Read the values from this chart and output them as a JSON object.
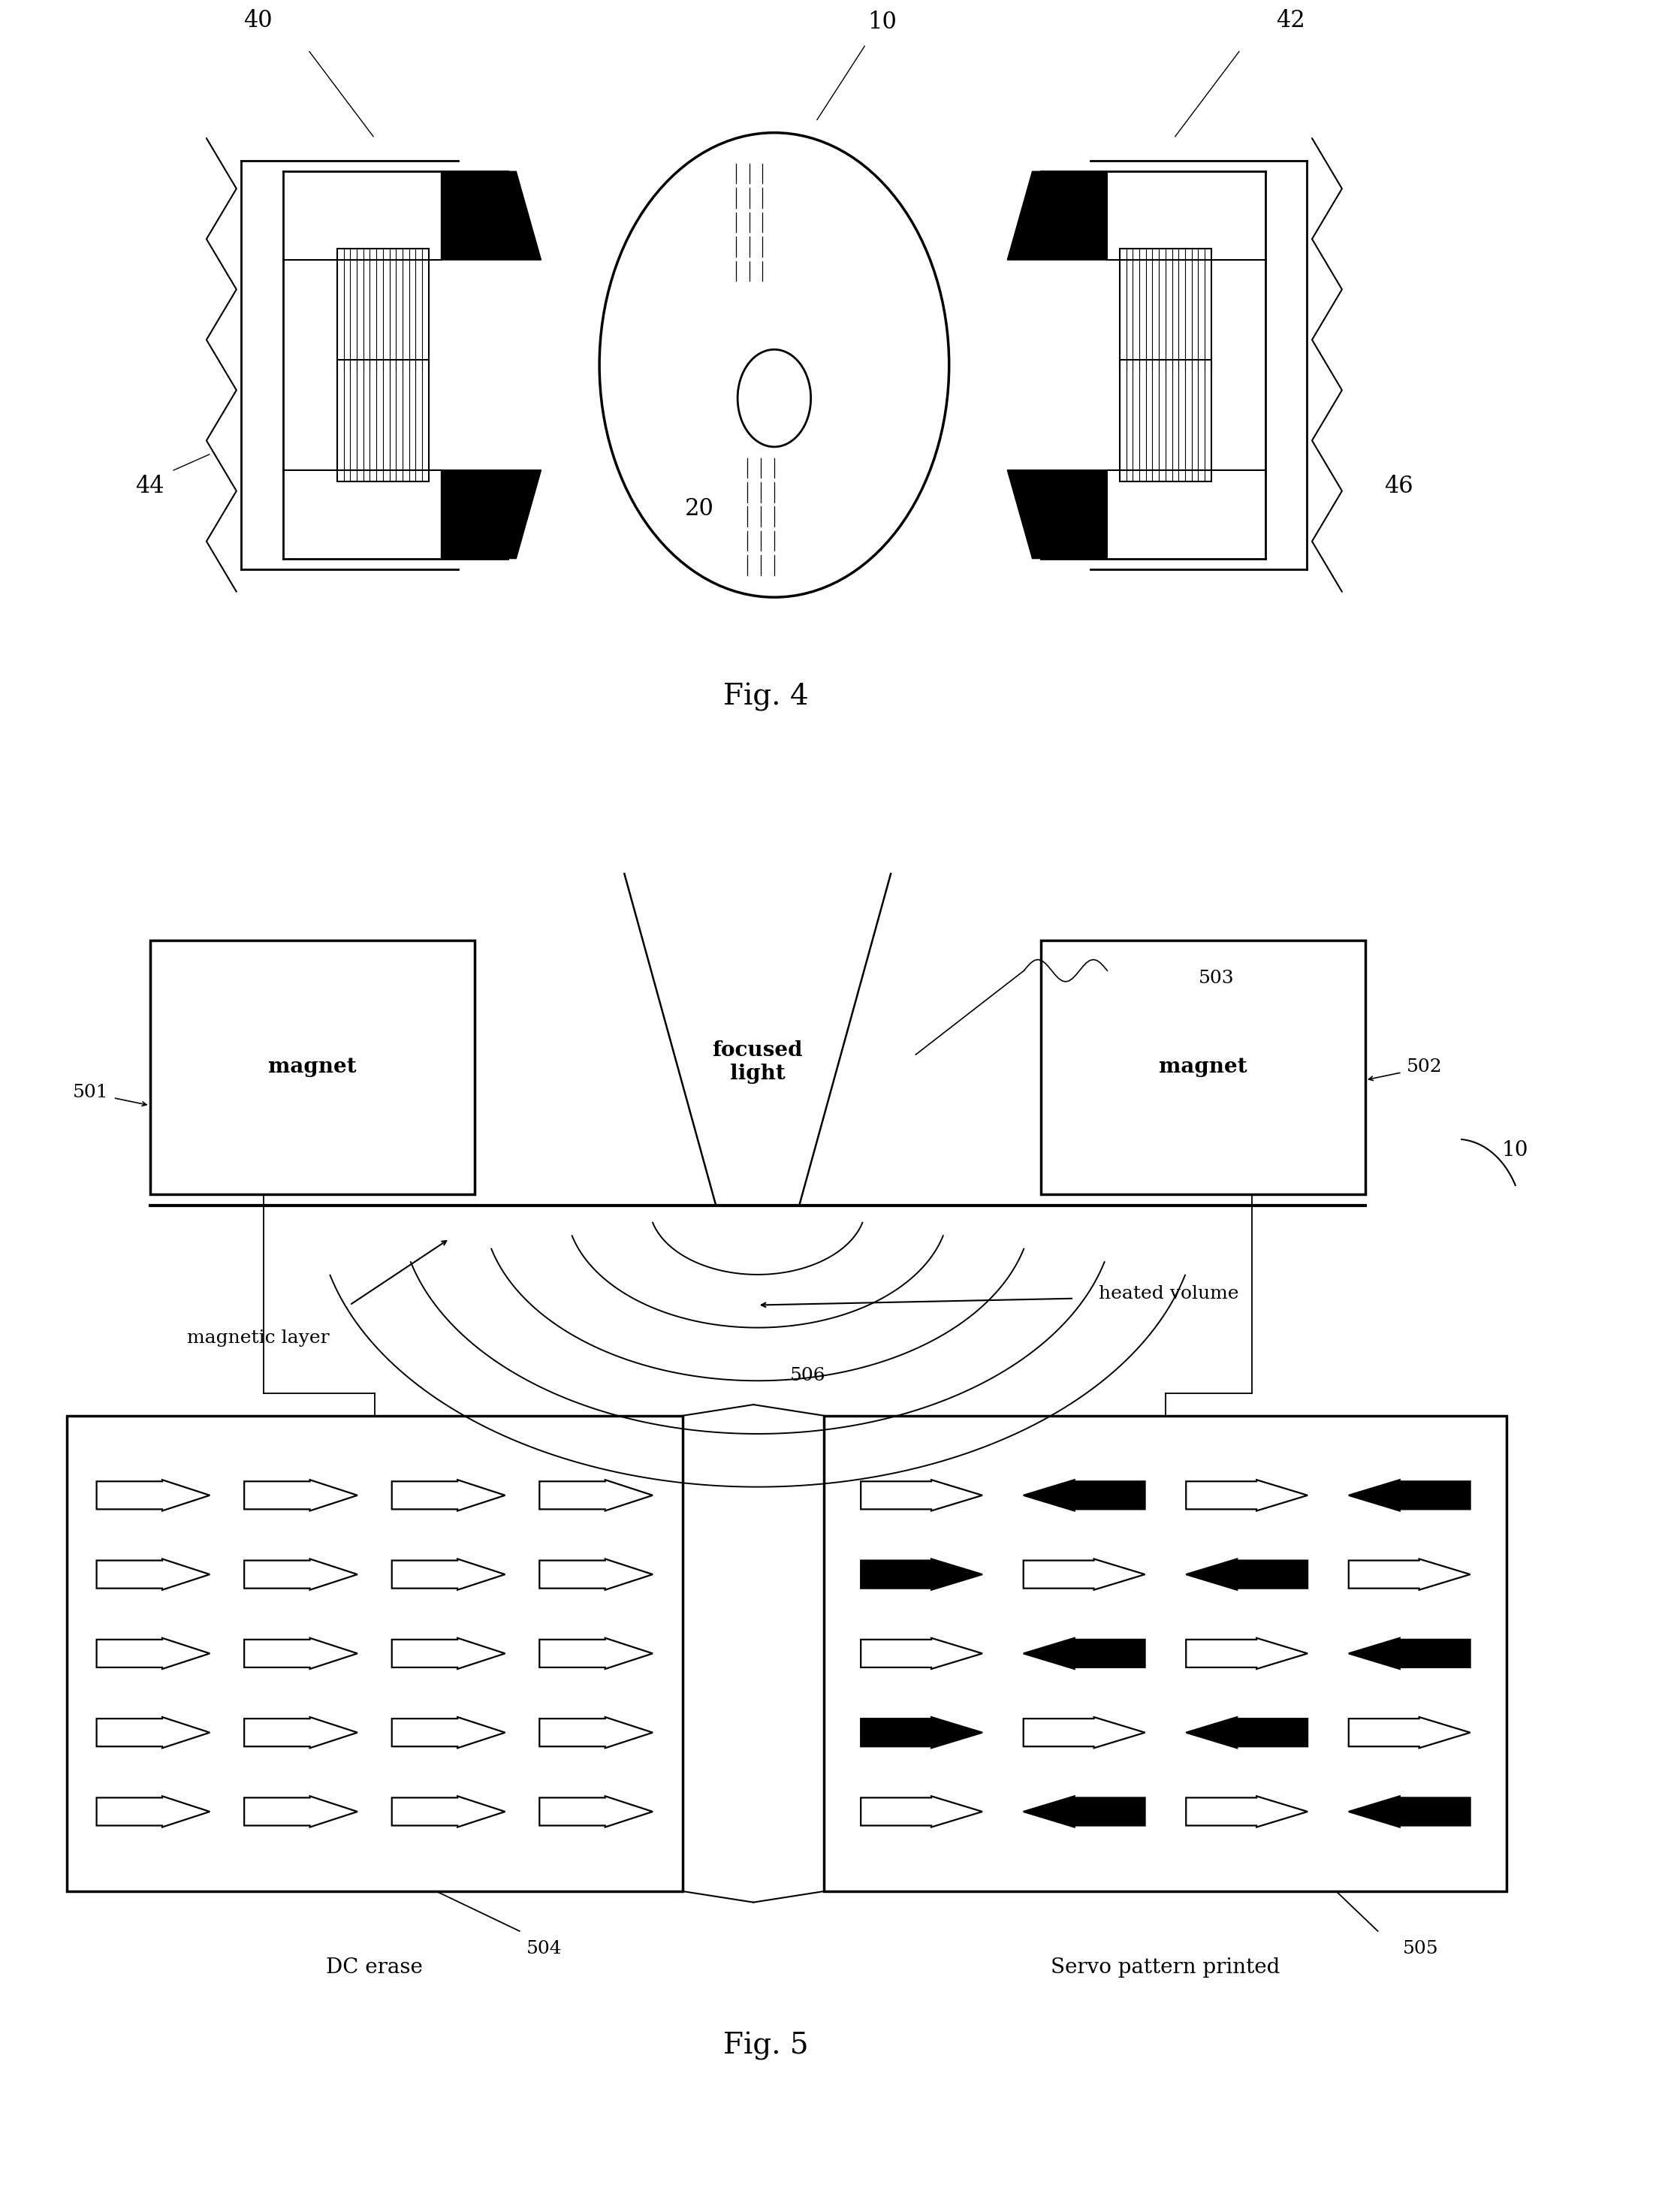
{
  "fig_width": 22.17,
  "fig_height": 29.45,
  "bg_color": "#ffffff",
  "line_color": "#000000",
  "fig4_caption": "Fig. 4",
  "fig5_caption": "Fig. 5",
  "magnet_text": "magnet",
  "focused_light_text": "focused\nlight",
  "magnetic_layer_text": "magnetic layer",
  "heated_volume_text": "heated volume",
  "dc_erase_text": "DC erase",
  "servo_pattern_text": "Servo pattern printed"
}
